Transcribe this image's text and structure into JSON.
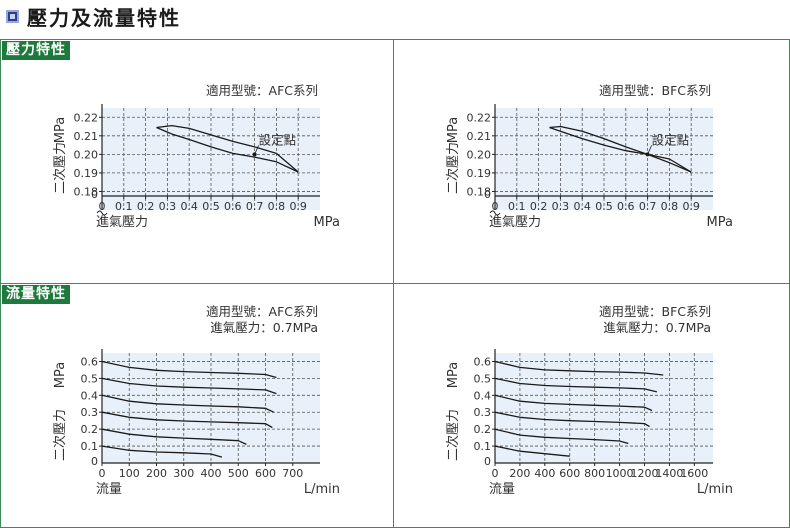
{
  "header": {
    "title": "壓力及流量特性"
  },
  "sections": {
    "pressure_label": "壓力特性",
    "flow_label": "流量特性"
  },
  "colors": {
    "frame": "#3f8a5a",
    "tag_bg": "#1e7a3c",
    "plot_bg": "#e8f0f9",
    "grid": "#555555",
    "curve": "#1a1a1a"
  },
  "chart_data": [
    {
      "id": "afc-pressure",
      "type": "line",
      "model_label": "適用型號：AFC系列",
      "note_lines": [],
      "annotation": "設定點",
      "xlabel": "進氣壓力",
      "xunit": "MPa",
      "ylabel": "二次壓力",
      "yunit": "MPa",
      "xlim": [
        0,
        1.0
      ],
      "ylim": [
        0.17,
        0.225
      ],
      "xbreak": false,
      "ybreak": true,
      "xticks": [
        0,
        0.1,
        0.2,
        0.3,
        0.4,
        0.5,
        0.6,
        0.7,
        0.8,
        0.9
      ],
      "xtick_labels": [
        "0",
        "0.1",
        "0.2",
        "0.3",
        "0.4",
        "0.5",
        "0.6",
        "0.7",
        "0.8",
        "0.9"
      ],
      "yticks": [
        0.18,
        0.19,
        0.2,
        0.21,
        0.22
      ],
      "ytick_labels": [
        "0.18",
        "0.19",
        "0.20",
        "0.21",
        "0.22"
      ],
      "ybottom_label": "0",
      "series": [
        {
          "x": [
            0.25,
            0.32,
            0.4,
            0.5,
            0.6,
            0.7,
            0.8,
            0.9
          ],
          "y": [
            0.2145,
            0.2155,
            0.214,
            0.2105,
            0.207,
            0.204,
            0.2005,
            0.1905
          ]
        },
        {
          "x": [
            0.25,
            0.32,
            0.4,
            0.5,
            0.6,
            0.7,
            0.8,
            0.9
          ],
          "y": [
            0.2145,
            0.211,
            0.208,
            0.204,
            0.2005,
            0.1985,
            0.196,
            0.1905
          ]
        }
      ]
    },
    {
      "id": "bfc-pressure",
      "type": "line",
      "model_label": "適用型號：BFC系列",
      "note_lines": [],
      "annotation": "設定點",
      "xlabel": "進氣壓力",
      "xunit": "MPa",
      "ylabel": "二次壓力",
      "yunit": "MPa",
      "xlim": [
        0,
        1.0
      ],
      "ylim": [
        0.17,
        0.225
      ],
      "xbreak": false,
      "ybreak": true,
      "xticks": [
        0,
        0.1,
        0.2,
        0.3,
        0.4,
        0.5,
        0.6,
        0.7,
        0.8,
        0.9
      ],
      "xtick_labels": [
        "0",
        "0.1",
        "0.2",
        "0.3",
        "0.4",
        "0.5",
        "0.6",
        "0.7",
        "0.8",
        "0.9"
      ],
      "yticks": [
        0.18,
        0.19,
        0.2,
        0.21,
        0.22
      ],
      "ytick_labels": [
        "0.18",
        "0.19",
        "0.20",
        "0.21",
        "0.22"
      ],
      "ybottom_label": "0",
      "series": [
        {
          "x": [
            0.25,
            0.3,
            0.4,
            0.5,
            0.6,
            0.7,
            0.8,
            0.9
          ],
          "y": [
            0.2145,
            0.215,
            0.2125,
            0.2085,
            0.204,
            0.2,
            0.1955,
            0.1905
          ]
        },
        {
          "x": [
            0.25,
            0.3,
            0.4,
            0.5,
            0.6,
            0.7,
            0.8,
            0.9
          ],
          "y": [
            0.2145,
            0.2125,
            0.2085,
            0.205,
            0.202,
            0.2,
            0.1975,
            0.1905
          ]
        }
      ]
    },
    {
      "id": "afc-flow",
      "type": "line",
      "model_label": "適用型號：AFC系列",
      "note_lines": [
        "進氣壓力：0.7MPa"
      ],
      "annotation": "",
      "xlabel": "流量",
      "xunit": "L/min",
      "ylabel": "二次壓力",
      "yunit": "MPa",
      "xlim": [
        0,
        800
      ],
      "ylim": [
        0,
        0.65
      ],
      "xbreak": false,
      "ybreak": false,
      "xticks": [
        0,
        100,
        200,
        300,
        400,
        500,
        600,
        700
      ],
      "xtick_labels": [
        "0",
        "100",
        "200",
        "300",
        "400",
        "500",
        "600",
        "700"
      ],
      "yticks": [
        0.1,
        0.2,
        0.3,
        0.4,
        0.5,
        0.6
      ],
      "ytick_labels": [
        "0.1",
        "0.2",
        "0.3",
        "0.4",
        "0.5",
        "0.6"
      ],
      "ybottom_label": "0",
      "series": [
        {
          "x": [
            0,
            100,
            200,
            300,
            400,
            500,
            600,
            640
          ],
          "y": [
            0.6,
            0.565,
            0.548,
            0.54,
            0.535,
            0.53,
            0.523,
            0.505
          ]
        },
        {
          "x": [
            0,
            100,
            200,
            300,
            400,
            500,
            600,
            640
          ],
          "y": [
            0.5,
            0.47,
            0.455,
            0.448,
            0.443,
            0.438,
            0.432,
            0.41
          ]
        },
        {
          "x": [
            0,
            100,
            200,
            300,
            400,
            500,
            600,
            630
          ],
          "y": [
            0.4,
            0.365,
            0.35,
            0.343,
            0.337,
            0.332,
            0.323,
            0.3
          ]
        },
        {
          "x": [
            0,
            100,
            200,
            300,
            400,
            500,
            600,
            625
          ],
          "y": [
            0.3,
            0.27,
            0.255,
            0.248,
            0.243,
            0.238,
            0.232,
            0.21
          ]
        },
        {
          "x": [
            0,
            100,
            200,
            300,
            400,
            500,
            530
          ],
          "y": [
            0.2,
            0.17,
            0.155,
            0.147,
            0.14,
            0.132,
            0.11
          ]
        },
        {
          "x": [
            0,
            100,
            200,
            300,
            400,
            440
          ],
          "y": [
            0.1,
            0.075,
            0.065,
            0.06,
            0.053,
            0.035
          ]
        }
      ]
    },
    {
      "id": "bfc-flow",
      "type": "line",
      "model_label": "適用型號：BFC系列",
      "note_lines": [
        "進氣壓力：0.7MPa"
      ],
      "annotation": "",
      "xlabel": "流量",
      "xunit": "L/min",
      "ylabel": "二次壓力",
      "yunit": "MPa",
      "xlim": [
        0,
        1750
      ],
      "ylim": [
        0,
        0.65
      ],
      "xbreak": false,
      "ybreak": false,
      "xticks": [
        0,
        200,
        400,
        600,
        800,
        1000,
        1200,
        1400,
        1600
      ],
      "xtick_labels": [
        "0",
        "200",
        "400",
        "600",
        "800",
        "1000",
        "1200",
        "1400",
        "1600"
      ],
      "yticks": [
        0.1,
        0.2,
        0.3,
        0.4,
        0.5,
        0.6
      ],
      "ytick_labels": [
        "0.1",
        "0.2",
        "0.3",
        "0.4",
        "0.5",
        "0.6"
      ],
      "ybottom_label": "0",
      "series": [
        {
          "x": [
            0,
            200,
            400,
            600,
            800,
            1000,
            1200,
            1350
          ],
          "y": [
            0.6,
            0.565,
            0.55,
            0.545,
            0.54,
            0.537,
            0.532,
            0.52
          ]
        },
        {
          "x": [
            0,
            200,
            400,
            600,
            800,
            1000,
            1200,
            1300
          ],
          "y": [
            0.5,
            0.47,
            0.458,
            0.452,
            0.448,
            0.444,
            0.438,
            0.42
          ]
        },
        {
          "x": [
            0,
            200,
            400,
            600,
            800,
            1000,
            1200,
            1260
          ],
          "y": [
            0.4,
            0.365,
            0.352,
            0.346,
            0.341,
            0.336,
            0.33,
            0.31
          ]
        },
        {
          "x": [
            0,
            200,
            400,
            600,
            800,
            1000,
            1200,
            1240
          ],
          "y": [
            0.3,
            0.27,
            0.257,
            0.25,
            0.245,
            0.24,
            0.233,
            0.215
          ]
        },
        {
          "x": [
            0,
            200,
            400,
            600,
            800,
            1000,
            1070
          ],
          "y": [
            0.2,
            0.165,
            0.152,
            0.145,
            0.138,
            0.13,
            0.115
          ]
        },
        {
          "x": [
            0,
            200,
            400,
            600
          ],
          "y": [
            0.1,
            0.07,
            0.055,
            0.04
          ]
        }
      ]
    }
  ]
}
